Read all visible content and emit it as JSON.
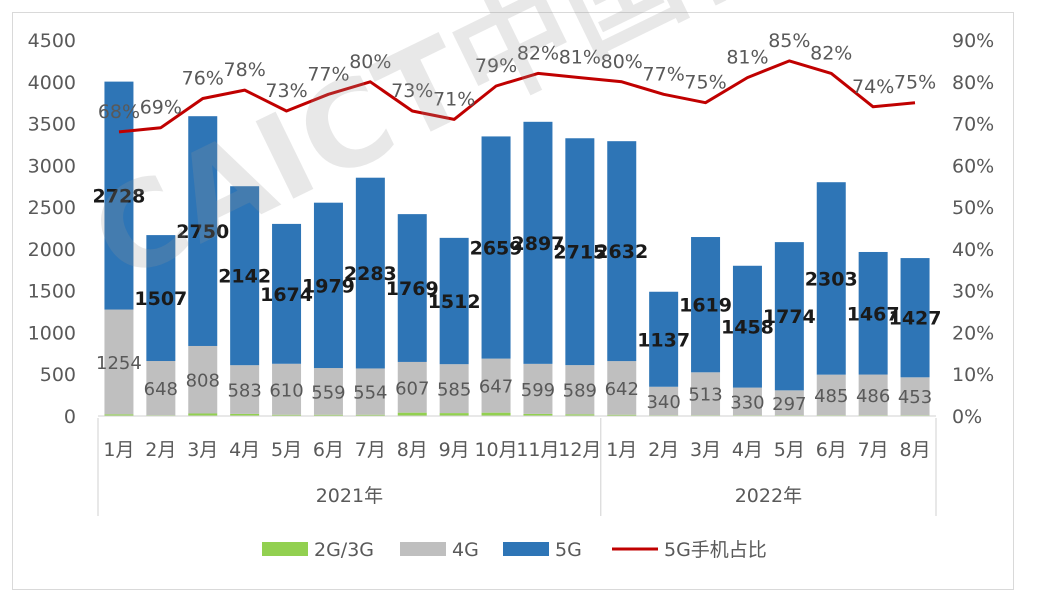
{
  "chart_data": {
    "type": "bar",
    "stacked": true,
    "categories": [
      "1月",
      "2月",
      "3月",
      "4月",
      "5月",
      "6月",
      "7月",
      "8月",
      "9月",
      "10月",
      "11月",
      "12月",
      "1月",
      "2月",
      "3月",
      "4月",
      "5月",
      "6月",
      "7月",
      "8月"
    ],
    "year_groups": [
      {
        "label": "2021年",
        "count": 12
      },
      {
        "label": "2022年",
        "count": 8
      }
    ],
    "series": [
      {
        "name": "2G/3G",
        "color": "#92d050",
        "values": [
          20,
          10,
          30,
          25,
          15,
          15,
          15,
          40,
          35,
          40,
          25,
          20,
          15,
          10,
          10,
          10,
          10,
          10,
          10,
          10
        ]
      },
      {
        "name": "4G",
        "color": "#bfbfbf",
        "values": [
          1254,
          648,
          808,
          583,
          610,
          559,
          554,
          607,
          585,
          647,
          599,
          589,
          642,
          340,
          513,
          330,
          297,
          485,
          486,
          453
        ]
      },
      {
        "name": "5G",
        "color": "#2e75b6",
        "values": [
          2728,
          1507,
          2750,
          2142,
          1674,
          1979,
          2283,
          1769,
          1512,
          2659,
          2897,
          2715,
          2632,
          1137,
          1619,
          1458,
          1774,
          2303,
          1467,
          1427
        ]
      }
    ],
    "share_series": {
      "name": "5G手机占比",
      "color": "#c00000",
      "values": [
        68,
        69,
        76,
        78,
        73,
        77,
        80,
        73,
        71,
        79,
        82,
        81,
        80,
        77,
        75,
        81,
        85,
        82,
        74,
        75
      ],
      "labels": [
        "68%",
        "69%",
        "76%",
        "78%",
        "73%",
        "77%",
        "80%",
        "73%",
        "71%",
        "79%",
        "82%",
        "81%",
        "80%",
        "77%",
        "75%",
        "81%",
        "85%",
        "82%",
        "74%",
        "75%"
      ]
    },
    "y_left": {
      "min": 0,
      "max": 4500,
      "ticks": [
        "0",
        "500",
        "1000",
        "1500",
        "2000",
        "2500",
        "3000",
        "3500",
        "4000",
        "4500"
      ]
    },
    "y_right": {
      "min": 0,
      "max": 90,
      "ticks": [
        "0%",
        "10%",
        "20%",
        "30%",
        "40%",
        "50%",
        "60%",
        "70%",
        "80%",
        "90%"
      ]
    },
    "legend": {
      "position": "bottom",
      "items": [
        "2G/3G",
        "4G",
        "5G",
        "5G手机占比"
      ]
    },
    "grid": false
  },
  "watermark": "CAICT中国信通院"
}
